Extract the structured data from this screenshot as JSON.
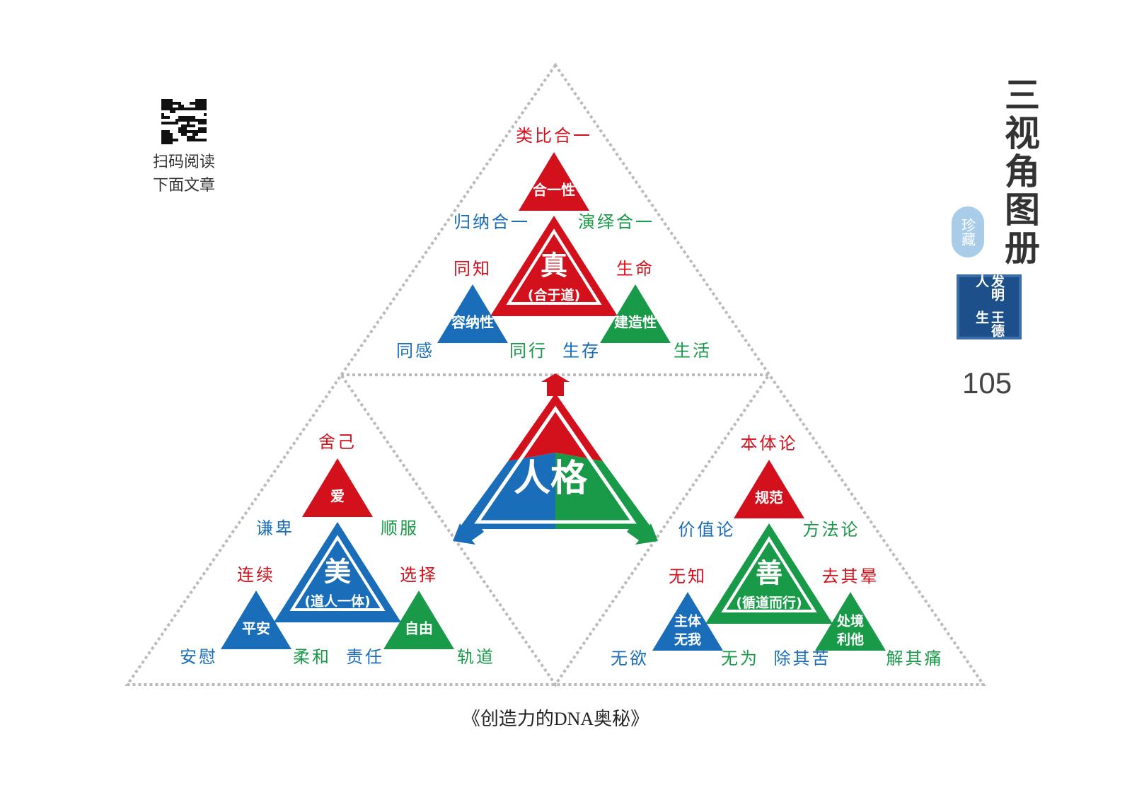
{
  "qr_caption": [
    "扫码阅读",
    "下面文章"
  ],
  "side_title": "三视角图册",
  "seal": "珍藏",
  "stamp": {
    "role": "发明人",
    "name": "王德生"
  },
  "page_number": "105",
  "center": "人格",
  "caption": "《创造力的DNA奥秘》",
  "clusters": [
    {
      "core": {
        "title": "真",
        "subtitle": "(合于道)"
      },
      "apex": {
        "label": "合一性",
        "note": "类比合一"
      },
      "left_note": "归纳合一",
      "right_note": "演绎合一",
      "left": {
        "label": "容纳性",
        "note": "同知",
        "bottom": [
          "同感",
          "同行"
        ]
      },
      "right": {
        "label": "建造性",
        "note": "生命",
        "bottom": [
          "生存",
          "生活"
        ]
      }
    },
    {
      "core": {
        "title": "美",
        "subtitle": "(道人一体)"
      },
      "apex": {
        "label": "爱",
        "note": "舍己"
      },
      "left_note": "谦卑",
      "right_note": "顺服",
      "left": {
        "label": "平安",
        "note": "连续",
        "bottom": [
          "安慰",
          "柔和"
        ]
      },
      "right": {
        "label": "自由",
        "note": "选择",
        "bottom": [
          "责任",
          "轨道"
        ]
      }
    },
    {
      "core": {
        "title": "善",
        "subtitle": "(循道而行)"
      },
      "apex": {
        "label": "规范",
        "note": "本体论"
      },
      "left_note": "价值论",
      "right_note": "方法论",
      "left": {
        "label": [
          "主体",
          "无我"
        ],
        "note": "无知",
        "bottom": [
          "无欲",
          "无为"
        ]
      },
      "right": {
        "label": [
          "处境",
          "利他"
        ],
        "note": "去其晕",
        "bottom": [
          "除其苦",
          "解其痛"
        ]
      }
    }
  ]
}
